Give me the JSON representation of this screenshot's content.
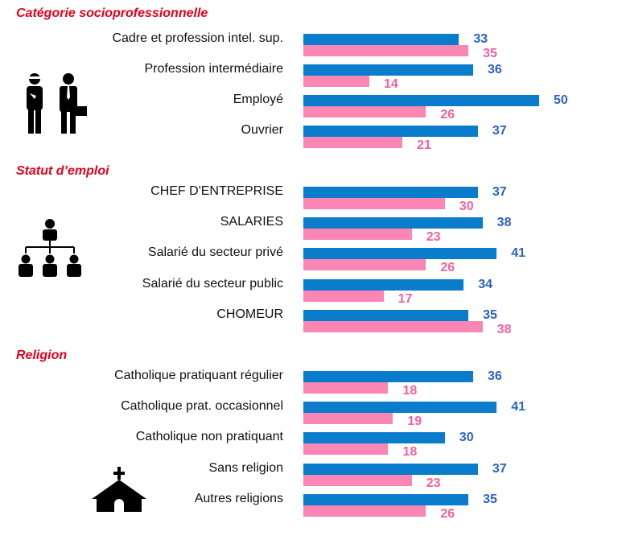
{
  "colors": {
    "series_a": "#0a7ccc",
    "series_a_text": "#2a62c0",
    "series_b": "#fb85b4",
    "series_b_text": "#f0609f",
    "header": "#e3001b"
  },
  "chart_data": {
    "type": "bar",
    "orientation": "horizontal",
    "xlim": [
      0,
      50
    ],
    "grid": false,
    "groups": [
      {
        "title": "Catégorie socioprofessionnelle",
        "icon": "workers-icon",
        "categories": [
          "Cadre et profession intel. sup.",
          "Profession intermédiaire",
          "Employé",
          "Ouvrier"
        ],
        "series": [
          {
            "values": [
              33,
              36,
              50,
              37
            ]
          },
          {
            "values": [
              35,
              14,
              26,
              21
            ]
          }
        ]
      },
      {
        "title": "Statut d’emploi",
        "icon": "org-chart-icon",
        "categories": [
          "CHEF D'ENTREPRISE",
          "SALARIES",
          "Salarié du secteur privé",
          "Salarié du secteur public",
          "CHOMEUR"
        ],
        "series": [
          {
            "values": [
              37,
              38,
              41,
              34,
              35
            ]
          },
          {
            "values": [
              30,
              23,
              26,
              17,
              38
            ]
          }
        ]
      },
      {
        "title": "Religion",
        "icon": "church-icon",
        "categories": [
          "Catholique pratiquant régulier",
          "Catholique prat. occasionnel",
          "Catholique non pratiquant",
          "Sans religion",
          "Autres religions"
        ],
        "series": [
          {
            "values": [
              36,
              41,
              30,
              37,
              35
            ]
          },
          {
            "values": [
              18,
              19,
              18,
              23,
              26
            ]
          }
        ]
      }
    ]
  }
}
